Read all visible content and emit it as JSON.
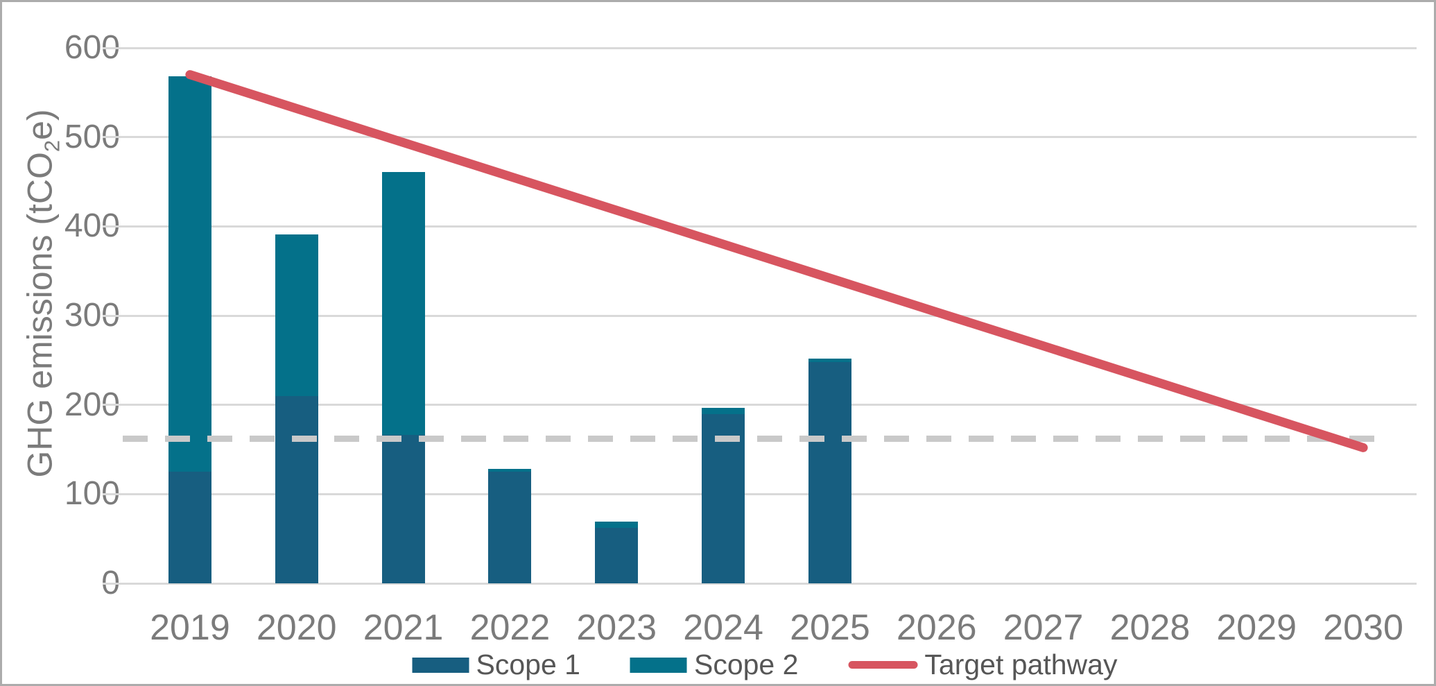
{
  "figure": {
    "background": "#ffffff",
    "border_color": "#acacac"
  },
  "chart_data": {
    "type": "bar",
    "subtype": "stacked-column-with-target-line",
    "title": "",
    "xlabel": "",
    "ylabel_parts": {
      "pre": "GHG emissions (tCO",
      "sub": "2",
      "post": "e)"
    },
    "categories": [
      "2019",
      "2020",
      "2021",
      "2022",
      "2023",
      "2024",
      "2025",
      "2026",
      "2027",
      "2028",
      "2029",
      "2030"
    ],
    "series": [
      {
        "name": "Scope 1",
        "type": "bar",
        "color": "#175e80",
        "values": [
          125,
          210,
          166,
          125,
          62,
          190,
          248,
          null,
          null,
          null,
          null,
          null
        ]
      },
      {
        "name": "Scope 2",
        "type": "bar",
        "color": "#04718a",
        "values": [
          443,
          181,
          295,
          3,
          7,
          7,
          4,
          null,
          null,
          null,
          null,
          null
        ]
      },
      {
        "name": "Target pathway",
        "type": "line",
        "color": "#d75560",
        "values": [
          570,
          532,
          494,
          456,
          418,
          380,
          342,
          304,
          266,
          228,
          190,
          152
        ]
      }
    ],
    "stacked_totals": [
      568,
      391,
      461,
      128,
      69,
      197,
      252,
      null,
      null,
      null,
      null,
      null
    ],
    "reference_line": {
      "value": 162,
      "style": "dashed",
      "color": "#c9c9c9"
    },
    "y_axis": {
      "min": 0,
      "max": 600,
      "tick_step": 100,
      "ticks": [
        0,
        100,
        200,
        300,
        400,
        500,
        600
      ]
    },
    "grid": true,
    "gridline_color": "#d9d9d9",
    "legend_position": "bottom",
    "axis_text_color": "#7b7b7b",
    "legend_text_color": "#565656"
  }
}
